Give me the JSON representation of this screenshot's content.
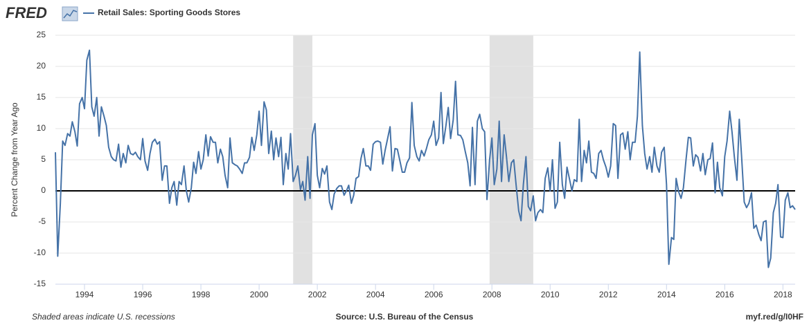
{
  "chart_data": {
    "type": "line",
    "logo": "FRED",
    "y_label": "Percent Change from Year Ago",
    "footer_left": "Shaded areas indicate U.S. recessions",
    "footer_center": "Source: U.S. Bureau of the Census",
    "footer_right": "myf.red/g/I0HF",
    "xlim": [
      1993,
      2018.42
    ],
    "xticks": [
      1994,
      1996,
      1998,
      2000,
      2002,
      2004,
      2006,
      2008,
      2010,
      2012,
      2014,
      2016,
      2018
    ],
    "ylim": [
      -15,
      25
    ],
    "yticks": [
      -15,
      -10,
      -5,
      0,
      5,
      10,
      15,
      20,
      25
    ],
    "grid": true,
    "recessions": [
      [
        2001.17,
        2001.83
      ],
      [
        2007.92,
        2009.42
      ]
    ],
    "recession_color": "#e1e1e1",
    "x": [
      1993.0,
      1993.08,
      1993.17,
      1993.25,
      1993.33,
      1993.42,
      1993.5,
      1993.58,
      1993.67,
      1993.75,
      1993.83,
      1993.92,
      1994.0,
      1994.08,
      1994.17,
      1994.25,
      1994.33,
      1994.42,
      1994.5,
      1994.58,
      1994.67,
      1994.75,
      1994.83,
      1994.92,
      1995.0,
      1995.08,
      1995.17,
      1995.25,
      1995.33,
      1995.42,
      1995.5,
      1995.58,
      1995.67,
      1995.75,
      1995.83,
      1995.92,
      1996.0,
      1996.08,
      1996.17,
      1996.25,
      1996.33,
      1996.42,
      1996.5,
      1996.58,
      1996.67,
      1996.75,
      1996.83,
      1996.92,
      1997.0,
      1997.08,
      1997.17,
      1997.25,
      1997.33,
      1997.42,
      1997.5,
      1997.58,
      1997.67,
      1997.75,
      1997.83,
      1997.92,
      1998.0,
      1998.08,
      1998.17,
      1998.25,
      1998.33,
      1998.42,
      1998.5,
      1998.58,
      1998.67,
      1998.75,
      1998.83,
      1998.92,
      1999.0,
      1999.08,
      1999.17,
      1999.25,
      1999.33,
      1999.42,
      1999.5,
      1999.58,
      1999.67,
      1999.75,
      1999.83,
      1999.92,
      2000.0,
      2000.08,
      2000.17,
      2000.25,
      2000.33,
      2000.42,
      2000.5,
      2000.58,
      2000.67,
      2000.75,
      2000.83,
      2000.92,
      2001.0,
      2001.08,
      2001.17,
      2001.25,
      2001.33,
      2001.42,
      2001.5,
      2001.58,
      2001.67,
      2001.75,
      2001.83,
      2001.92,
      2002.0,
      2002.08,
      2002.17,
      2002.25,
      2002.33,
      2002.42,
      2002.5,
      2002.58,
      2002.67,
      2002.75,
      2002.83,
      2002.92,
      2003.0,
      2003.08,
      2003.17,
      2003.25,
      2003.33,
      2003.42,
      2003.5,
      2003.58,
      2003.67,
      2003.75,
      2003.83,
      2003.92,
      2004.0,
      2004.08,
      2004.17,
      2004.25,
      2004.33,
      2004.42,
      2004.5,
      2004.58,
      2004.67,
      2004.75,
      2004.83,
      2004.92,
      2005.0,
      2005.08,
      2005.17,
      2005.25,
      2005.33,
      2005.42,
      2005.5,
      2005.58,
      2005.67,
      2005.75,
      2005.83,
      2005.92,
      2006.0,
      2006.08,
      2006.17,
      2006.25,
      2006.33,
      2006.42,
      2006.5,
      2006.58,
      2006.67,
      2006.75,
      2006.83,
      2006.92,
      2007.0,
      2007.08,
      2007.17,
      2007.25,
      2007.33,
      2007.42,
      2007.5,
      2007.58,
      2007.67,
      2007.75,
      2007.83,
      2007.92,
      2008.0,
      2008.08,
      2008.17,
      2008.25,
      2008.33,
      2008.42,
      2008.5,
      2008.58,
      2008.67,
      2008.75,
      2008.83,
      2008.92,
      2009.0,
      2009.08,
      2009.17,
      2009.25,
      2009.33,
      2009.42,
      2009.5,
      2009.58,
      2009.67,
      2009.75,
      2009.83,
      2009.92,
      2010.0,
      2010.08,
      2010.17,
      2010.25,
      2010.33,
      2010.42,
      2010.5,
      2010.58,
      2010.67,
      2010.75,
      2010.83,
      2010.92,
      2011.0,
      2011.08,
      2011.17,
      2011.25,
      2011.33,
      2011.42,
      2011.5,
      2011.58,
      2011.67,
      2011.75,
      2011.83,
      2011.92,
      2012.0,
      2012.08,
      2012.17,
      2012.25,
      2012.33,
      2012.42,
      2012.5,
      2012.58,
      2012.67,
      2012.75,
      2012.83,
      2012.92,
      2013.0,
      2013.08,
      2013.17,
      2013.25,
      2013.33,
      2013.42,
      2013.5,
      2013.58,
      2013.67,
      2013.75,
      2013.83,
      2013.92,
      2014.0,
      2014.08,
      2014.17,
      2014.25,
      2014.33,
      2014.42,
      2014.5,
      2014.58,
      2014.67,
      2014.75,
      2014.83,
      2014.92,
      2015.0,
      2015.08,
      2015.17,
      2015.25,
      2015.33,
      2015.42,
      2015.5,
      2015.58,
      2015.67,
      2015.75,
      2015.83,
      2015.92,
      2016.0,
      2016.08,
      2016.17,
      2016.25,
      2016.33,
      2016.42,
      2016.5,
      2016.58,
      2016.67,
      2016.75,
      2016.83,
      2016.92,
      2017.0,
      2017.08,
      2017.17,
      2017.25,
      2017.33,
      2017.42,
      2017.5,
      2017.58,
      2017.67,
      2017.75,
      2017.83,
      2017.92,
      2018.0,
      2018.08,
      2018.17,
      2018.25,
      2018.33,
      2018.42
    ],
    "series": [
      {
        "name": "Retail Sales: Sporting Goods Stores",
        "color": "#4572a7",
        "values": [
          6.2,
          -10.5,
          -2,
          8,
          7.3,
          9.2,
          8.8,
          11.1,
          9.5,
          7.2,
          14,
          15,
          13.2,
          21,
          22.6,
          13.5,
          12,
          15,
          8.8,
          13.5,
          12,
          10.5,
          7,
          5.5,
          5,
          4.8,
          7.5,
          3.8,
          6,
          4.5,
          7.3,
          6,
          5.8,
          6.2,
          5.5,
          5,
          8.4,
          4.8,
          3.3,
          6,
          7.8,
          8.3,
          7.5,
          7.9,
          1.7,
          4,
          4,
          -2,
          0.5,
          1.5,
          -2.3,
          1.5,
          1,
          4,
          0,
          -1.8,
          0.5,
          4.6,
          2.8,
          6.3,
          3.5,
          5,
          9,
          5.6,
          8.7,
          7.8,
          7.8,
          4.5,
          6.7,
          5.5,
          2.5,
          0.5,
          8.5,
          4.5,
          4.2,
          4,
          3.5,
          2.8,
          4.5,
          4.5,
          5.4,
          8.6,
          6.5,
          9,
          12.8,
          7.3,
          14.3,
          13,
          6,
          9.6,
          5,
          8.5,
          5.5,
          8.6,
          1,
          6,
          3.5,
          9.2,
          1.5,
          2.5,
          4,
          0.2,
          1.5,
          -1.5,
          5.5,
          -1.2,
          9,
          10.8,
          2.5,
          0.5,
          3.6,
          2.7,
          4,
          -1.8,
          -3,
          -0.5,
          0.4,
          0.8,
          0.8,
          -0.7,
          0,
          0.9,
          -2,
          -0.7,
          2,
          2.3,
          5.2,
          6.8,
          4,
          4,
          3.3,
          7.5,
          7.9,
          8,
          7.8,
          4.3,
          6.5,
          8.5,
          10.3,
          3.2,
          6.8,
          6.7,
          5,
          3,
          3,
          4.5,
          5.3,
          14.2,
          7.3,
          5.5,
          4.8,
          6.5,
          5.6,
          6.8,
          8.2,
          9,
          11.2,
          7.3,
          8.5,
          15.8,
          7.6,
          10.5,
          13.4,
          8.4,
          11.4,
          17.6,
          9,
          8.9,
          8.2,
          6.4,
          4.5,
          0.8,
          10.2,
          1,
          11.2,
          12.3,
          10,
          9.5,
          -1.4,
          5,
          8.5,
          1,
          3.5,
          11.2,
          1.5,
          9,
          5.5,
          1.5,
          4.5,
          5,
          1,
          -3.2,
          -4.8,
          1,
          5.5,
          -2.5,
          -3.2,
          -0.8,
          -4.8,
          -3.5,
          -3,
          -3.5,
          2,
          3.7,
          0,
          5,
          -2.8,
          -1.8,
          7.8,
          1,
          -1.2,
          3.8,
          1.8,
          0,
          1.8,
          1.5,
          11.5,
          1.5,
          6.5,
          4.5,
          8,
          3,
          2.8,
          2,
          6,
          6.5,
          5,
          3.8,
          2.2,
          4,
          10.8,
          10.5,
          2,
          9,
          9.3,
          6.7,
          9.5,
          5,
          7.8,
          7.8,
          12,
          22.3,
          10.5,
          6,
          3.5,
          5.5,
          3,
          7,
          4,
          3,
          6.2,
          7,
          1,
          -11.8,
          -7.5,
          -7.8,
          2,
          -0.2,
          -1.2,
          0.5,
          5,
          8.6,
          8.5,
          4,
          5.8,
          5.4,
          3.2,
          6,
          2.6,
          5,
          5.2,
          7.7,
          -0.3,
          4.6,
          0.5,
          -0.8,
          5.5,
          8,
          12.8,
          9.5,
          5.5,
          1.7,
          11.5,
          5.5,
          -1.8,
          -2.7,
          -2,
          -0.3,
          -6,
          -5.5,
          -7,
          -8,
          -5,
          -4.8,
          -12.3,
          -10.8,
          -3.5,
          -2,
          1,
          -7.4,
          -7.5,
          -1.5,
          -0.3,
          -2.7,
          -2.4,
          -3
        ]
      }
    ]
  }
}
